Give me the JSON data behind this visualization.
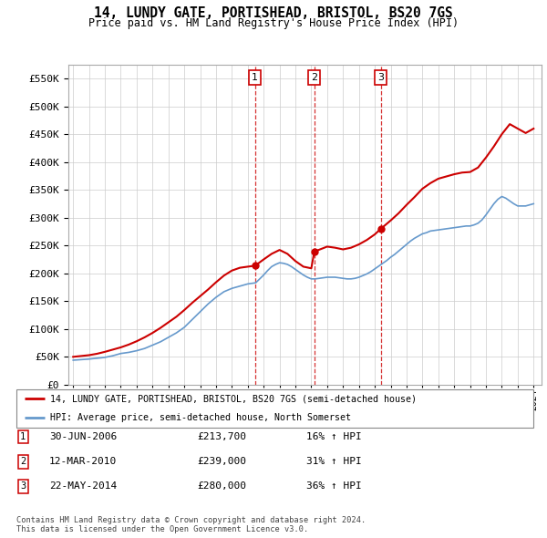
{
  "title": "14, LUNDY GATE, PORTISHEAD, BRISTOL, BS20 7GS",
  "subtitle": "Price paid vs. HM Land Registry's House Price Index (HPI)",
  "ylim": [
    0,
    575000
  ],
  "yticks": [
    0,
    50000,
    100000,
    150000,
    200000,
    250000,
    300000,
    350000,
    400000,
    450000,
    500000,
    550000
  ],
  "property_color": "#cc0000",
  "hpi_color": "#6699cc",
  "legend_property": "14, LUNDY GATE, PORTISHEAD, BRISTOL, BS20 7GS (semi-detached house)",
  "legend_hpi": "HPI: Average price, semi-detached house, North Somerset",
  "sale_prices": [
    213700,
    239000,
    280000
  ],
  "sale_labels": [
    "1",
    "2",
    "3"
  ],
  "sale_year_floats": [
    2006.46,
    2010.19,
    2014.38
  ],
  "sale_info": [
    {
      "num": "1",
      "date": "30-JUN-2006",
      "price": "£213,700",
      "hpi": "16% ↑ HPI"
    },
    {
      "num": "2",
      "date": "12-MAR-2010",
      "price": "£239,000",
      "hpi": "31% ↑ HPI"
    },
    {
      "num": "3",
      "date": "22-MAY-2014",
      "price": "£280,000",
      "hpi": "36% ↑ HPI"
    }
  ],
  "footer1": "Contains HM Land Registry data © Crown copyright and database right 2024.",
  "footer2": "This data is licensed under the Open Government Licence v3.0.",
  "hpi_years": [
    1995,
    1995.25,
    1995.5,
    1995.75,
    1996,
    1996.25,
    1996.5,
    1996.75,
    1997,
    1997.25,
    1997.5,
    1997.75,
    1998,
    1998.25,
    1998.5,
    1998.75,
    1999,
    1999.25,
    1999.5,
    1999.75,
    2000,
    2000.25,
    2000.5,
    2000.75,
    2001,
    2001.25,
    2001.5,
    2001.75,
    2002,
    2002.25,
    2002.5,
    2002.75,
    2003,
    2003.25,
    2003.5,
    2003.75,
    2004,
    2004.25,
    2004.5,
    2004.75,
    2005,
    2005.25,
    2005.5,
    2005.75,
    2006,
    2006.25,
    2006.5,
    2006.75,
    2007,
    2007.25,
    2007.5,
    2007.75,
    2008,
    2008.25,
    2008.5,
    2008.75,
    2009,
    2009.25,
    2009.5,
    2009.75,
    2010,
    2010.25,
    2010.5,
    2010.75,
    2011,
    2011.25,
    2011.5,
    2011.75,
    2012,
    2012.25,
    2012.5,
    2012.75,
    2013,
    2013.25,
    2013.5,
    2013.75,
    2014,
    2014.25,
    2014.5,
    2014.75,
    2015,
    2015.25,
    2015.5,
    2015.75,
    2016,
    2016.25,
    2016.5,
    2016.75,
    2017,
    2017.25,
    2017.5,
    2017.75,
    2018,
    2018.25,
    2018.5,
    2018.75,
    2019,
    2019.25,
    2019.5,
    2019.75,
    2020,
    2020.25,
    2020.5,
    2020.75,
    2021,
    2021.25,
    2021.5,
    2021.75,
    2022,
    2022.25,
    2022.5,
    2022.75,
    2023,
    2023.25,
    2023.5,
    2023.75,
    2024
  ],
  "hpi_values": [
    44000,
    44500,
    45000,
    45500,
    46000,
    46800,
    47500,
    48200,
    49000,
    50500,
    52000,
    54000,
    56000,
    57000,
    58000,
    59500,
    61000,
    63000,
    65000,
    68000,
    71000,
    74000,
    77000,
    81000,
    85000,
    89000,
    93000,
    98000,
    103000,
    110000,
    117000,
    124000,
    131000,
    138000,
    145000,
    151000,
    157000,
    162000,
    167000,
    170000,
    173000,
    175000,
    177000,
    179000,
    181000,
    182000,
    183000,
    190000,
    197000,
    205000,
    212000,
    216000,
    219000,
    218000,
    216000,
    212000,
    207000,
    202000,
    197000,
    193000,
    190000,
    190000,
    191000,
    192000,
    193000,
    193000,
    193000,
    192000,
    191000,
    190000,
    190000,
    191000,
    193000,
    196000,
    199000,
    203000,
    208000,
    213000,
    218000,
    223000,
    229000,
    234000,
    240000,
    246000,
    252000,
    258000,
    263000,
    267000,
    271000,
    273000,
    276000,
    277000,
    278000,
    279000,
    280000,
    281000,
    282000,
    283000,
    284000,
    285000,
    285000,
    287000,
    290000,
    296000,
    305000,
    315000,
    325000,
    333000,
    338000,
    335000,
    330000,
    325000,
    321000,
    321000,
    321000,
    323000,
    325000
  ],
  "prop_years": [
    1995,
    1995.5,
    1996,
    1996.5,
    1997,
    1997.5,
    1998,
    1998.5,
    1999,
    1999.5,
    2000,
    2000.5,
    2001,
    2001.5,
    2002,
    2002.5,
    2003,
    2003.5,
    2004,
    2004.5,
    2005,
    2005.5,
    2006,
    2006.46,
    2007,
    2007.5,
    2008,
    2008.5,
    2009,
    2009.5,
    2010,
    2010.19,
    2011,
    2011.5,
    2012,
    2012.5,
    2013,
    2013.5,
    2014,
    2014.38,
    2015,
    2015.5,
    2016,
    2016.5,
    2017,
    2017.5,
    2018,
    2018.5,
    2019,
    2019.5,
    2020,
    2020.5,
    2021,
    2021.5,
    2022,
    2022.5,
    2023,
    2023.5,
    2024
  ],
  "prop_values": [
    50000,
    51500,
    53000,
    55500,
    59000,
    63000,
    67000,
    72000,
    78000,
    85000,
    93000,
    102000,
    112000,
    122000,
    134000,
    147000,
    159000,
    171000,
    184000,
    196000,
    205000,
    210000,
    212000,
    213700,
    225000,
    235000,
    242000,
    235000,
    222000,
    212000,
    209000,
    239000,
    248000,
    246000,
    243000,
    246000,
    252000,
    260000,
    270000,
    280000,
    295000,
    308000,
    323000,
    337000,
    352000,
    362000,
    370000,
    374000,
    378000,
    381000,
    382000,
    390000,
    408000,
    428000,
    450000,
    468000,
    460000,
    452000,
    460000
  ]
}
